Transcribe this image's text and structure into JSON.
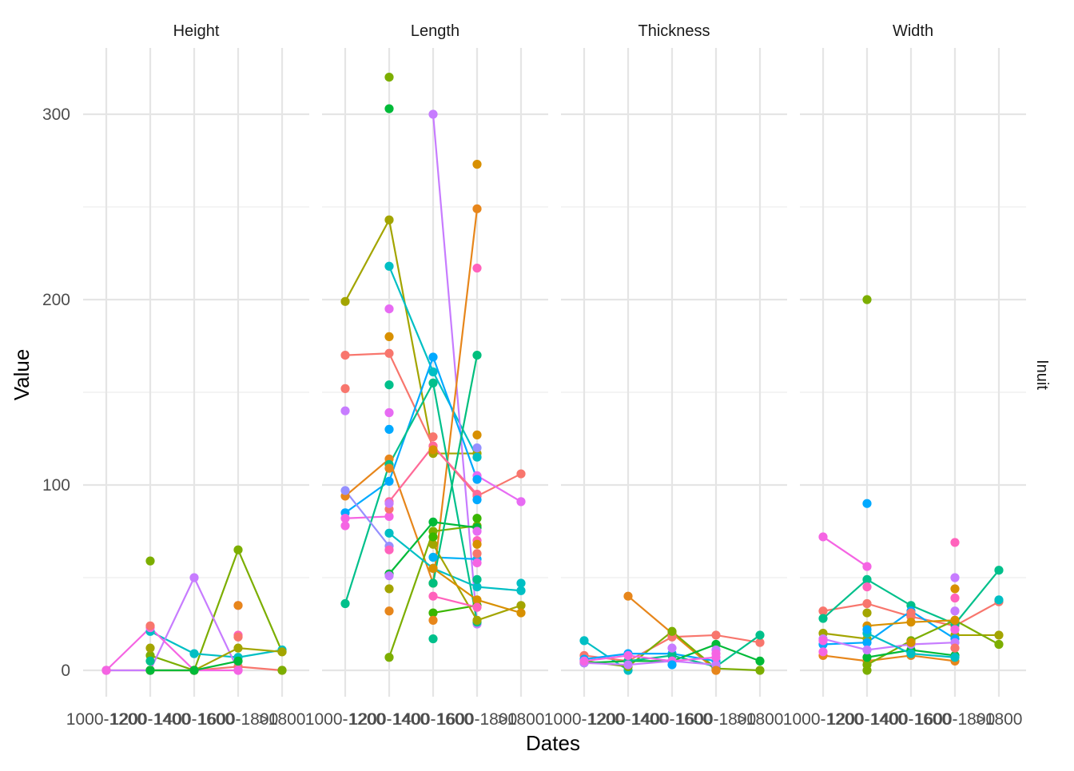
{
  "chart_data": {
    "type": "line",
    "xlabel": "Dates",
    "ylabel": "Value",
    "strip_label_right": "Inuit",
    "categories": [
      "1000-1200",
      "1200-1400",
      "1400-1600",
      "1600-1800",
      ">1800"
    ],
    "ylim": [
      -15,
      335
    ],
    "yticks": [
      0,
      100,
      200,
      300
    ],
    "grid": true,
    "legend": "none",
    "panels": [
      {
        "facet": "Height",
        "series": [
          {
            "color": "#F8766D",
            "values": [
              0,
              0,
              0,
              2,
              0
            ]
          },
          {
            "color": "#7CAE00",
            "values": [
              null,
              8,
              0,
              65,
              10
            ]
          },
          {
            "color": "#00BFC4",
            "values": [
              null,
              21,
              9,
              7,
              11
            ]
          },
          {
            "color": "#C77CFF",
            "values": [
              0,
              0,
              50,
              0,
              null
            ]
          },
          {
            "color": "#F564E3",
            "values": [
              0,
              23,
              0,
              0,
              null
            ]
          },
          {
            "color": "#A3A500",
            "values": [
              null,
              0,
              0,
              12,
              10
            ]
          },
          {
            "color": "#00BA38",
            "values": [
              null,
              0,
              0,
              5,
              null
            ]
          }
        ],
        "points": [
          {
            "x": "1200-1400",
            "y": 59,
            "color": "#7CAE00"
          },
          {
            "x": "1200-1400",
            "y": 12,
            "color": "#A3A500"
          },
          {
            "x": "1200-1400",
            "y": 5,
            "color": "#00C08B"
          },
          {
            "x": "1200-1400",
            "y": 24,
            "color": "#F8766D"
          },
          {
            "x": "1600-1800",
            "y": 35,
            "color": "#E76BF3"
          },
          {
            "x": "1600-1800",
            "y": 35,
            "color": "#E7861B"
          },
          {
            "x": "1600-1800",
            "y": 19,
            "color": "#FF62BC"
          },
          {
            "x": "1600-1800",
            "y": 18,
            "color": "#F8766D"
          },
          {
            "x": ">1800",
            "y": 0,
            "color": "#7CAE00"
          }
        ]
      },
      {
        "facet": "Length",
        "series": [
          {
            "color": "#A3A500",
            "values": [
              199,
              243,
              117,
              117,
              null
            ]
          },
          {
            "color": "#F8766D",
            "values": [
              170,
              171,
              121,
              94,
              106
            ]
          },
          {
            "color": "#00BFC4",
            "values": [
              null,
              218,
              161,
              115,
              null
            ]
          },
          {
            "color": "#C77CFF",
            "values": [
              null,
              null,
              300,
              25,
              null
            ]
          },
          {
            "color": "#E76BF3",
            "values": [
              null,
              139,
              null,
              105,
              91
            ]
          },
          {
            "color": "#00A9FF",
            "values": [
              85,
              102,
              169,
              103,
              null
            ]
          },
          {
            "color": "#F564E3",
            "values": [
              82,
              83,
              null,
              null,
              null
            ]
          },
          {
            "color": "#E7861B",
            "values": [
              94,
              114,
              47,
              249,
              null
            ]
          },
          {
            "color": "#00C08B",
            "values": [
              36,
              111,
              155,
              26,
              null
            ]
          },
          {
            "color": "#7CAE00",
            "values": [
              null,
              7,
              75,
              78,
              null
            ]
          },
          {
            "color": "#00BA38",
            "values": [
              null,
              52,
              80,
              77,
              null
            ]
          },
          {
            "color": "#00B0F6",
            "values": [
              null,
              null,
              61,
              60,
              null
            ]
          },
          {
            "color": "#39B600",
            "values": [
              null,
              null,
              31,
              35,
              null
            ]
          },
          {
            "color": "#00BFC4",
            "values": [
              null,
              74,
              55,
              45,
              43
            ]
          },
          {
            "color": "#A3A500",
            "values": [
              null,
              null,
              68,
              27,
              35
            ]
          },
          {
            "color": "#D89000",
            "values": [
              null,
              null,
              55,
              38,
              31
            ]
          },
          {
            "color": "#FF62BC",
            "values": [
              null,
              null,
              40,
              34,
              null
            ]
          },
          {
            "color": "#00BF7D",
            "values": [
              null,
              null,
              47,
              170,
              null
            ]
          },
          {
            "color": "#FF6A98",
            "values": [
              null,
              91,
              121,
              95,
              null
            ]
          },
          {
            "color": "#9590FF",
            "values": [
              97,
              67,
              null,
              null,
              null
            ]
          }
        ],
        "points": [
          {
            "x": "1000-1200",
            "y": 152,
            "color": "#F8766D"
          },
          {
            "x": "1000-1200",
            "y": 140,
            "color": "#C77CFF"
          },
          {
            "x": "1000-1200",
            "y": 78,
            "color": "#F564E3"
          },
          {
            "x": "1200-1400",
            "y": 320,
            "color": "#7CAE00"
          },
          {
            "x": "1200-1400",
            "y": 303,
            "color": "#00BA38"
          },
          {
            "x": "1200-1400",
            "y": 195,
            "color": "#E76BF3"
          },
          {
            "x": "1200-1400",
            "y": 180,
            "color": "#D89000"
          },
          {
            "x": "1200-1400",
            "y": 154,
            "color": "#00C08B"
          },
          {
            "x": "1200-1400",
            "y": 130,
            "color": "#00A9FF"
          },
          {
            "x": "1200-1400",
            "y": 109,
            "color": "#E7861B"
          },
          {
            "x": "1200-1400",
            "y": 87,
            "color": "#F8766D"
          },
          {
            "x": "1200-1400",
            "y": 90,
            "color": "#C77CFF"
          },
          {
            "x": "1200-1400",
            "y": 65,
            "color": "#FF62BC"
          },
          {
            "x": "1200-1400",
            "y": 51,
            "color": "#C77CFF"
          },
          {
            "x": "1200-1400",
            "y": 44,
            "color": "#A3A500"
          },
          {
            "x": "1200-1400",
            "y": 32,
            "color": "#E7861B"
          },
          {
            "x": "1400-1600",
            "y": 126,
            "color": "#F8766D"
          },
          {
            "x": "1400-1600",
            "y": 119,
            "color": "#D89000"
          },
          {
            "x": "1400-1600",
            "y": 72,
            "color": "#39B600"
          },
          {
            "x": "1400-1600",
            "y": 27,
            "color": "#E7861B"
          },
          {
            "x": "1400-1600",
            "y": 17,
            "color": "#00C08B"
          },
          {
            "x": "1600-1800",
            "y": 273,
            "color": "#D89000"
          },
          {
            "x": "1600-1800",
            "y": 217,
            "color": "#FF62BC"
          },
          {
            "x": "1600-1800",
            "y": 127,
            "color": "#D89000"
          },
          {
            "x": "1600-1800",
            "y": 120,
            "color": "#9590FF"
          },
          {
            "x": "1600-1800",
            "y": 92,
            "color": "#00A9FF"
          },
          {
            "x": "1600-1800",
            "y": 82,
            "color": "#39B600"
          },
          {
            "x": "1600-1800",
            "y": 75,
            "color": "#E76BF3"
          },
          {
            "x": "1600-1800",
            "y": 70,
            "color": "#FF62BC"
          },
          {
            "x": "1600-1800",
            "y": 68,
            "color": "#D89000"
          },
          {
            "x": "1600-1800",
            "y": 63,
            "color": "#F8766D"
          },
          {
            "x": "1600-1800",
            "y": 58,
            "color": "#F564E3"
          },
          {
            "x": "1600-1800",
            "y": 49,
            "color": "#00C08B"
          },
          {
            "x": ">1800",
            "y": 47,
            "color": "#00BFC4"
          }
        ]
      },
      {
        "facet": "Thickness",
        "series": [
          {
            "color": "#00BFC4",
            "values": [
              16,
              0,
              null,
              null,
              null
            ]
          },
          {
            "color": "#E7861B",
            "values": [
              null,
              40,
              20,
              0,
              null
            ]
          },
          {
            "color": "#F8766D",
            "values": [
              8,
              5,
              18,
              19,
              15
            ]
          },
          {
            "color": "#7CAE00",
            "values": [
              5,
              2,
              21,
              1,
              0
            ]
          },
          {
            "color": "#00A9FF",
            "values": [
              6,
              9,
              9,
              5,
              null
            ]
          },
          {
            "color": "#00BA38",
            "values": [
              4,
              5,
              5,
              14,
              5
            ]
          },
          {
            "color": "#00C08B",
            "values": [
              null,
              5,
              8,
              2,
              19
            ]
          },
          {
            "color": "#C77CFF",
            "values": [
              4,
              3,
              5,
              3,
              null
            ]
          },
          {
            "color": "#F564E3",
            "values": [
              5,
              8,
              5,
              7,
              null
            ]
          }
        ],
        "points": [
          {
            "x": "1400-1600",
            "y": 12,
            "color": "#C77CFF"
          },
          {
            "x": "1400-1600",
            "y": 3,
            "color": "#00A9FF"
          },
          {
            "x": "1600-1800",
            "y": 11,
            "color": "#C77CFF"
          },
          {
            "x": "1600-1800",
            "y": 9,
            "color": "#F564E3"
          },
          {
            "x": "1600-1800",
            "y": 0,
            "color": "#E7861B"
          }
        ]
      },
      {
        "facet": "Width",
        "series": [
          {
            "color": "#F564E3",
            "values": [
              72,
              56,
              null,
              null,
              null
            ]
          },
          {
            "color": "#F8766D",
            "values": [
              32,
              36,
              29,
              24,
              37
            ]
          },
          {
            "color": "#00C08B",
            "values": [
              28,
              49,
              35,
              25,
              54
            ]
          },
          {
            "color": "#A3A500",
            "values": [
              20,
              17,
              null,
              19,
              19
            ]
          },
          {
            "color": "#00A9FF",
            "values": [
              14,
              15,
              32,
              17,
              null
            ]
          },
          {
            "color": "#E7861B",
            "values": [
              8,
              5,
              8,
              5,
              null
            ]
          },
          {
            "color": "#7CAE00",
            "values": [
              null,
              3,
              16,
              27,
              14
            ]
          },
          {
            "color": "#00BA38",
            "values": [
              null,
              7,
              11,
              8,
              null
            ]
          },
          {
            "color": "#C77CFF",
            "values": [
              17,
              11,
              14,
              15,
              null
            ]
          },
          {
            "color": "#D89000",
            "values": [
              null,
              24,
              26,
              27,
              null
            ]
          },
          {
            "color": "#00BFC4",
            "values": [
              null,
              20,
              9,
              7,
              null
            ]
          }
        ],
        "points": [
          {
            "x": "1000-1200",
            "y": 16,
            "color": "#F564E3"
          },
          {
            "x": "1000-1200",
            "y": 10,
            "color": "#F564E3"
          },
          {
            "x": "1200-1400",
            "y": 200,
            "color": "#7CAE00"
          },
          {
            "x": "1200-1400",
            "y": 90,
            "color": "#00A9FF"
          },
          {
            "x": "1200-1400",
            "y": 45,
            "color": "#FF62BC"
          },
          {
            "x": "1200-1400",
            "y": 31,
            "color": "#A3A500"
          },
          {
            "x": "1200-1400",
            "y": 22,
            "color": "#00A9FF"
          },
          {
            "x": "1200-1400",
            "y": 0,
            "color": "#7CAE00"
          },
          {
            "x": "1400-1600",
            "y": 31,
            "color": "#F8766D"
          },
          {
            "x": "1400-1600",
            "y": 15,
            "color": "#D89000"
          },
          {
            "x": "1600-1800",
            "y": 69,
            "color": "#FF62BC"
          },
          {
            "x": "1600-1800",
            "y": 50,
            "color": "#C77CFF"
          },
          {
            "x": "1600-1800",
            "y": 44,
            "color": "#D89000"
          },
          {
            "x": "1600-1800",
            "y": 39,
            "color": "#FF62BC"
          },
          {
            "x": "1600-1800",
            "y": 32,
            "color": "#C77CFF"
          },
          {
            "x": "1600-1800",
            "y": 22,
            "color": "#F564E3"
          },
          {
            "x": "1600-1800",
            "y": 12,
            "color": "#F8766D"
          },
          {
            "x": ">1800",
            "y": 38,
            "color": "#00BFC4"
          }
        ]
      }
    ]
  }
}
